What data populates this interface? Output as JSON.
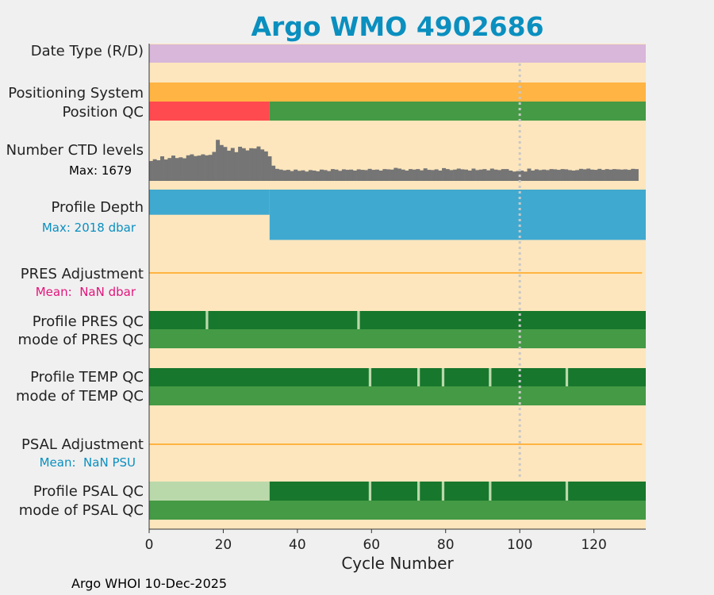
{
  "chart_data": {
    "type": "bar",
    "title": "Argo WMO 4902686",
    "xlabel": "Cycle Number",
    "xlim": [
      0,
      134
    ],
    "xticks": [
      0,
      20,
      40,
      60,
      80,
      100,
      120
    ],
    "reference_cycle": 100,
    "footer": "Argo WHOI 10-Dec-2025",
    "colors": {
      "title": "#0a8fbf",
      "background": "#fde6bd",
      "date_type": "#d8b7da",
      "positioning": "#ffb443",
      "qc_bad": "#ff4a4f",
      "qc_good": "#459a45",
      "qc_dark": "#17772c",
      "qc_light": "#bad9ab",
      "gap": "#bad9ab",
      "ctd": "#757575",
      "profile_depth": "#40a9cf",
      "adjustment_line": "#ffb443",
      "pres_mean_text": "#e3157b",
      "psal_mean_text": "#0a8fbf",
      "depth_max_text": "#0a8fbf",
      "reference_line": "#c8c8c8"
    },
    "rows": {
      "date_type": "Date Type (R/D)",
      "positioning_system": "Positioning System",
      "position_qc": "Position QC",
      "ctd_levels": "Number CTD levels",
      "ctd_max": "Max: 1679",
      "profile_depth": "Profile Depth",
      "depth_max": "Max: 2018 dbar",
      "pres_adjustment": "PRES Adjustment",
      "pres_mean": "Mean:  NaN dbar",
      "profile_pres_qc": "Profile PRES QC",
      "mode_pres_qc": "mode of PRES QC",
      "profile_temp_qc": "Profile TEMP QC",
      "mode_temp_qc": "mode of TEMP QC",
      "psal_adjustment": "PSAL Adjustment",
      "psal_mean": "Mean:  NaN PSU",
      "profile_psal_qc": "Profile PSAL QC",
      "mode_psal_qc": "mode of PSAL QC"
    },
    "position_qc_segments": [
      {
        "from": 0,
        "to": 32.5,
        "color": "qc_bad"
      },
      {
        "from": 32.5,
        "to": 134,
        "color": "qc_good"
      }
    ],
    "ctd_levels": {
      "max": 1679,
      "values": [
        810,
        880,
        840,
        1000,
        870,
        930,
        1030,
        930,
        960,
        920,
        1040,
        1080,
        1010,
        1030,
        1080,
        1040,
        1060,
        1180,
        1670,
        1460,
        1380,
        1230,
        1340,
        1170,
        1390,
        1330,
        1240,
        1330,
        1320,
        1400,
        1280,
        1200,
        1000,
        620,
        490,
        460,
        430,
        450,
        400,
        460,
        410,
        430,
        380,
        440,
        420,
        390,
        460,
        440,
        400,
        480,
        460,
        410,
        470,
        450,
        460,
        420,
        470,
        450,
        440,
        490,
        450,
        460,
        420,
        480,
        470,
        460,
        530,
        500,
        460,
        420,
        480,
        460,
        480,
        430,
        510,
        450,
        440,
        470,
        420,
        520,
        480,
        440,
        460,
        500,
        470,
        460,
        420,
        500,
        440,
        460,
        480,
        430,
        500,
        460,
        440,
        480,
        480,
        420,
        380,
        400,
        420,
        380,
        500,
        420,
        470,
        440,
        460,
        440,
        480,
        470,
        450,
        480,
        470,
        440,
        420,
        440,
        490,
        470,
        500,
        460,
        450,
        490,
        450,
        480,
        460,
        480,
        470,
        460,
        470,
        450,
        490,
        480
      ]
    },
    "profile_depth": {
      "max": 2018,
      "segments": [
        {
          "from": 0,
          "to": 32.5,
          "depth": 1000
        },
        {
          "from": 32.5,
          "to": 134,
          "depth": 2000
        }
      ]
    },
    "profile_pres_qc_gaps": [
      15.6,
      56.5
    ],
    "profile_temp_qc_gaps": [
      59.6,
      72.7,
      79.3,
      92.0,
      112.7
    ],
    "profile_psal_qc": {
      "light_until": 32.5,
      "gaps": [
        59.6,
        72.7,
        79.3,
        92.0,
        112.7
      ]
    }
  }
}
